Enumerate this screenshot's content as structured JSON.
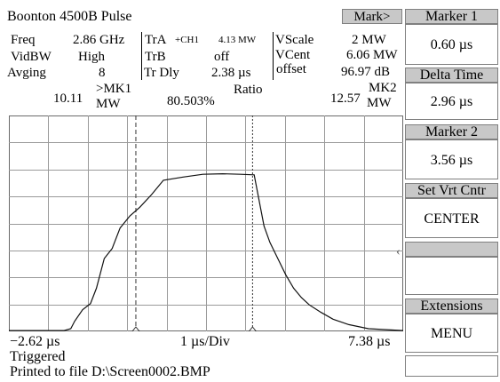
{
  "title": "Boonton 4500B Pulse",
  "mark_button": "Mark>",
  "readouts": {
    "freq_label": "Freq",
    "freq_value": "2.86 GHz",
    "vidbw_label": "VidBW",
    "vidbw_value": "High",
    "avging_label": "Avging",
    "avging_value": "8",
    "tra_label": "TrA",
    "tra_channel": "+CH1",
    "tra_value": "4.13 MW",
    "trb_label": "TrB",
    "trb_value": "off",
    "trdly_label": "Tr Dly",
    "trdly_value": "2.38 µs",
    "vscale_label": "VScale",
    "vscale_value": "2 MW",
    "vcent_label": "VCent",
    "vcent_value": "6.06 MW",
    "offset_label": "offset",
    "offset_value": "96.97 dB"
  },
  "markers_line": {
    "mk1_value": "10.11",
    "mk1_label_top": ">MK1",
    "mk1_label_bottom": "MW",
    "ratio_value": "80.503%",
    "ratio_label": "Ratio",
    "mk2_value": "12.57",
    "mk2_label_top": "MK2",
    "mk2_label_bottom": "MW"
  },
  "axis": {
    "start": "−2.62 µs",
    "div": "1 µs/Div",
    "end": "7.38 µs"
  },
  "status": {
    "triggered": "Triggered",
    "printed": "Printed to file D:\\Screen0002.BMP"
  },
  "softkeys": [
    {
      "label": "Marker 1",
      "value": "0.60 µs"
    },
    {
      "label": "Delta Time",
      "value": "2.96 µs"
    },
    {
      "label": "Marker 2",
      "value": "3.56 µs"
    },
    {
      "label": "Set Vrt Cntr",
      "value": "CENTER"
    },
    {
      "label": "",
      "value": ""
    },
    {
      "label": "Extensions",
      "value": "MENU"
    },
    {
      "label": "",
      "value": ""
    }
  ],
  "chart_data": {
    "type": "line",
    "xlim": [
      -2.62,
      7.38
    ],
    "x_divisions": 10,
    "y_divisions": 8,
    "grid": true,
    "marker_x": [
      0.6,
      3.56
    ],
    "x": [
      -2.62,
      -1.6,
      -1.22,
      -1.05,
      -0.95,
      -0.75,
      -0.55,
      -0.4,
      -0.2,
      0.0,
      0.2,
      0.45,
      0.7,
      1.0,
      1.3,
      1.8,
      2.3,
      2.8,
      3.25,
      3.6,
      3.7,
      3.85,
      4.0,
      4.2,
      4.4,
      4.6,
      4.8,
      5.0,
      5.3,
      5.6,
      6.0,
      6.5,
      7.38
    ],
    "y": [
      0.03,
      0.03,
      0.03,
      0.1,
      0.38,
      0.8,
      1.03,
      1.6,
      2.7,
      3.07,
      3.83,
      4.28,
      4.6,
      5.07,
      5.6,
      5.72,
      5.82,
      5.84,
      5.82,
      5.8,
      5.05,
      3.9,
      3.3,
      2.7,
      2.1,
      1.6,
      1.25,
      0.98,
      0.7,
      0.45,
      0.25,
      0.1,
      0.03
    ]
  }
}
